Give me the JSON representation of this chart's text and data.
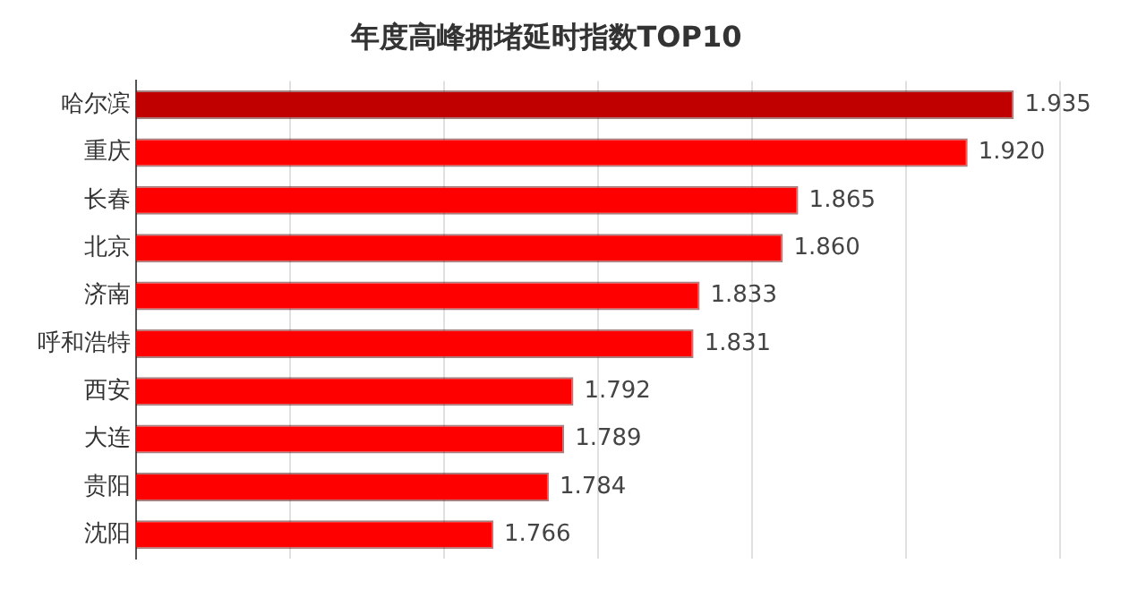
{
  "chart_data": {
    "type": "bar",
    "orientation": "horizontal",
    "title": "年度高峰拥堵延时指数TOP10",
    "categories": [
      "哈尔滨",
      "重庆",
      "长春",
      "北京",
      "济南",
      "呼和浩特",
      "西安",
      "大连",
      "贵阳",
      "沈阳"
    ],
    "values": [
      1.935,
      1.92,
      1.865,
      1.86,
      1.833,
      1.831,
      1.792,
      1.789,
      1.784,
      1.766
    ],
    "colors": [
      "#c00000",
      "#ff0000",
      "#ff0000",
      "#ff0000",
      "#ff0000",
      "#ff0000",
      "#ff0000",
      "#ff0000",
      "#ff0000",
      "#ff0000"
    ],
    "xlim": [
      1.65,
      1.95
    ],
    "xticks": [
      {
        "value": 1.65,
        "label": null
      },
      {
        "value": 1.7,
        "label": null
      },
      {
        "value": 1.75,
        "label": null
      },
      {
        "value": 1.8,
        "label": null
      },
      {
        "value": 1.85,
        "label": null
      },
      {
        "value": 1.9,
        "label": null
      },
      {
        "value": 1.95,
        "label": null
      }
    ],
    "value_labels": [
      "1.935",
      "1.920",
      "1.865",
      "1.860",
      "1.833",
      "1.831",
      "1.792",
      "1.789",
      "1.784",
      "1.766"
    ],
    "grid": "x",
    "tick_labels": "y",
    "legend": false
  }
}
